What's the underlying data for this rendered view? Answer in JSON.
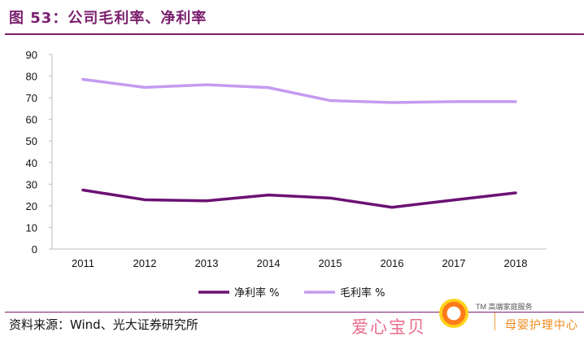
{
  "header": {
    "title": "图 53：公司毛利率、净利率"
  },
  "footer": {
    "source": "资料来源：Wind、光大证券研究所"
  },
  "watermark": {
    "text": "爱心宝贝",
    "brand": "TM 高端家庭服务",
    "subtitle": "母婴护理中心"
  },
  "chart_data": {
    "type": "line",
    "categories": [
      "2011",
      "2012",
      "2013",
      "2014",
      "2015",
      "2016",
      "2017",
      "2018"
    ],
    "yticks": [
      "0",
      "10",
      "20",
      "30",
      "40",
      "50",
      "60",
      "70",
      "80",
      "90"
    ],
    "ylim": [
      0,
      90
    ],
    "grid": false,
    "legend_position": "bottom",
    "series": [
      {
        "name": "净利率 %",
        "color": "#6b1273",
        "values": [
          27.3,
          22.8,
          22.3,
          25.0,
          23.6,
          19.3,
          22.7,
          26.0
        ]
      },
      {
        "name": "毛利率 %",
        "color": "#c49bf0",
        "values": [
          78.5,
          74.8,
          76.0,
          74.7,
          68.7,
          67.8,
          68.2,
          68.2
        ]
      }
    ]
  }
}
